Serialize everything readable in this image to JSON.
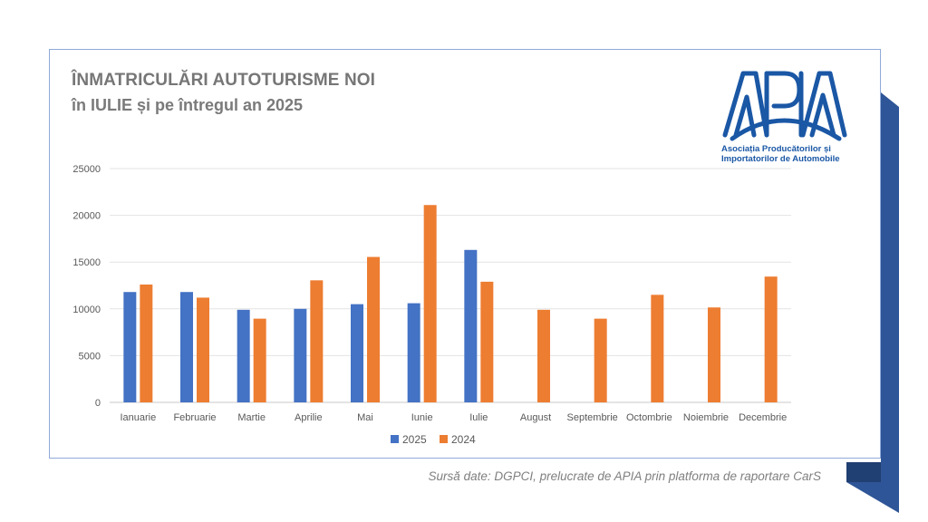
{
  "header": {
    "title": "ÎNMATRICULĂRI AUTOTURISME NOI",
    "subtitle": "în IULIE și pe întregul an 2025"
  },
  "logo": {
    "name": "APIA",
    "line1": "Asociația Producătorilor și",
    "line2": "Importatorilor de Automobile",
    "color": "#1a57a5"
  },
  "source": "Sursă date: DGPCI, prelucrate de APIA prin platforma de raportare CarS",
  "colors": {
    "series_2025": "#4472c4",
    "series_2024": "#ed7d31",
    "decoration": "#2e5597"
  },
  "chart_data": {
    "type": "bar",
    "categories": [
      "Ianuarie",
      "Februarie",
      "Martie",
      "Aprilie",
      "Mai",
      "Iunie",
      "Iulie",
      "August",
      "Septembrie",
      "Octombrie",
      "Noiembrie",
      "Decembrie"
    ],
    "series": [
      {
        "name": "2025",
        "color": "#4472c4",
        "values": [
          11800,
          11800,
          9900,
          10000,
          10500,
          10600,
          16300,
          null,
          null,
          null,
          null,
          null
        ]
      },
      {
        "name": "2024",
        "color": "#ed7d31",
        "values": [
          12600,
          11200,
          8950,
          13050,
          15550,
          21100,
          12900,
          9900,
          8950,
          11500,
          10150,
          13450
        ]
      }
    ],
    "ylim": [
      0,
      25000
    ],
    "yticks": [
      0,
      5000,
      10000,
      15000,
      20000,
      25000
    ],
    "grid": true,
    "legend": "bottom"
  }
}
